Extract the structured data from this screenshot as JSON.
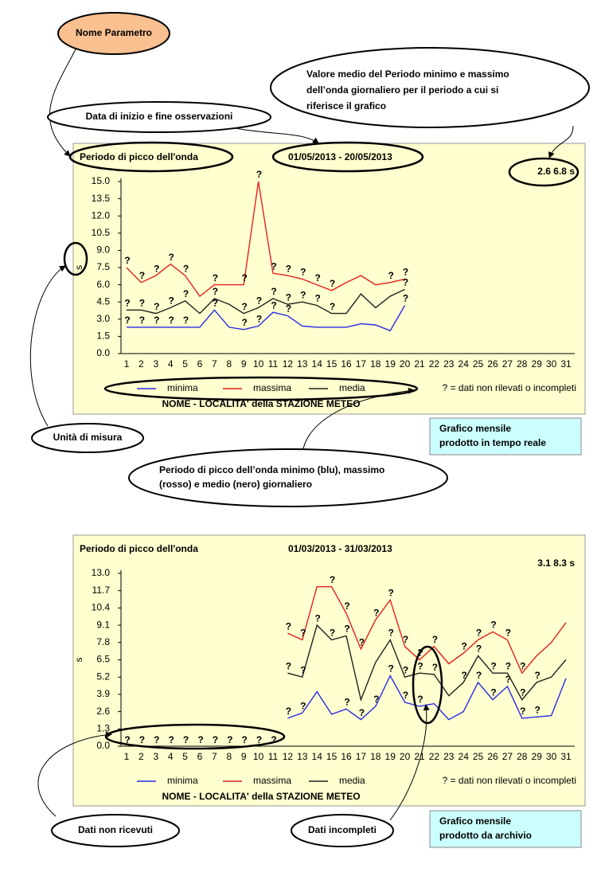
{
  "chart_data": [
    {
      "type": "line",
      "title": "Periodo di picco dell'onda",
      "period": "01/05/2013 - 20/05/2013",
      "stats": "2.6  6.8 s",
      "y_label": "s",
      "note": "? = dati non rilevati o incompleti",
      "station": "NOME - LOCALITA' della STAZIONE METEO",
      "flag_symbol": "?",
      "categories": [
        "1",
        "2",
        "3",
        "4",
        "5",
        "6",
        "7",
        "8",
        "9",
        "10",
        "11",
        "12",
        "13",
        "14",
        "15",
        "16",
        "17",
        "18",
        "19",
        "20",
        "21",
        "22",
        "23",
        "24",
        "25",
        "26",
        "27",
        "28",
        "29",
        "30",
        "31"
      ],
      "ylim": [
        0,
        15
      ],
      "yticks": [
        {
          "value": 0,
          "label": "0.0"
        },
        1.5,
        {
          "value": 3,
          "label": "3.0"
        },
        4.5,
        {
          "value": 6,
          "label": "6.0"
        },
        7.5,
        {
          "value": 9,
          "label": "9.0"
        },
        10.5,
        {
          "value": 12,
          "label": "12.0"
        },
        13.5,
        {
          "value": 15,
          "label": "15.0"
        }
      ],
      "series": [
        {
          "name": "minima",
          "color": "#2a2ae6",
          "values": [
            2.3,
            2.3,
            2.3,
            2.3,
            2.3,
            2.3,
            3.8,
            2.3,
            2.1,
            2.4,
            3.6,
            3.3,
            2.4,
            2.3,
            2.3,
            2.3,
            2.6,
            2.5,
            2.0,
            4.2,
            null,
            null,
            null,
            null,
            null,
            null,
            null,
            null,
            null,
            null,
            null
          ],
          "flags": [
            0,
            1,
            2,
            3,
            4,
            6,
            8,
            9,
            10,
            11,
            19
          ]
        },
        {
          "name": "massima",
          "color": "#e62020",
          "values": [
            7.5,
            6.2,
            6.8,
            7.8,
            6.8,
            5.0,
            6.0,
            6.0,
            6.0,
            15.0,
            7.0,
            6.8,
            6.5,
            6.0,
            5.5,
            6.2,
            6.8,
            6.0,
            6.2,
            6.5,
            null,
            null,
            null,
            null,
            null,
            null,
            null,
            null,
            null,
            null,
            null
          ],
          "flags": [
            0,
            1,
            2,
            3,
            4,
            6,
            8,
            9,
            10,
            11,
            12,
            13,
            14,
            18,
            19
          ]
        },
        {
          "name": "media",
          "color": "#202020",
          "values": [
            3.8,
            3.8,
            3.5,
            4.0,
            4.6,
            3.5,
            4.8,
            4.3,
            3.5,
            4.0,
            4.8,
            4.3,
            4.5,
            4.2,
            3.5,
            3.5,
            5.2,
            4.0,
            5.0,
            5.6,
            null,
            null,
            null,
            null,
            null,
            null,
            null,
            null,
            null,
            null,
            null
          ],
          "flags": [
            0,
            1,
            2,
            3,
            4,
            6,
            8,
            9,
            10,
            11,
            12,
            13,
            14,
            19
          ]
        }
      ]
    },
    {
      "type": "line",
      "title": "Periodo di picco dell'onda",
      "period": "01/03/2013 - 31/03/2013",
      "stats": "3.1  8.3 s",
      "y_label": "s",
      "note": "? = dati non rilevati o incompleti",
      "station": "NOME - LOCALITA' della STAZIONE METEO",
      "flag_symbol": "?",
      "categories": [
        "1",
        "2",
        "3",
        "4",
        "5",
        "6",
        "7",
        "8",
        "9",
        "10",
        "11",
        "12",
        "13",
        "14",
        "15",
        "16",
        "17",
        "18",
        "19",
        "20",
        "21",
        "22",
        "23",
        "24",
        "25",
        "26",
        "27",
        "28",
        "29",
        "30",
        "31"
      ],
      "ylim": [
        0,
        13
      ],
      "yticks": [
        {
          "value": 0,
          "label": "0.0"
        },
        1.3,
        2.6,
        3.9,
        5.2,
        6.5,
        7.8,
        9.1,
        10.4,
        11.7,
        {
          "value": 13,
          "label": "13.0"
        }
      ],
      "series": [
        {
          "name": "minima",
          "color": "#2a2ae6",
          "values": [
            null,
            null,
            null,
            null,
            null,
            null,
            null,
            null,
            null,
            null,
            null,
            2.1,
            2.5,
            4.1,
            2.4,
            2.8,
            2.0,
            3.0,
            5.3,
            3.3,
            3.0,
            3.2,
            2.0,
            2.6,
            4.8,
            3.5,
            4.5,
            2.1,
            2.2,
            2.3,
            5.1
          ],
          "flags": [
            11,
            12,
            15,
            16,
            17,
            18,
            19,
            20,
            24,
            25,
            26,
            27,
            28
          ]
        },
        {
          "name": "massima",
          "color": "#e62020",
          "values": [
            null,
            null,
            null,
            null,
            null,
            null,
            null,
            null,
            null,
            null,
            null,
            8.5,
            8.0,
            12.0,
            12.0,
            10.0,
            7.3,
            9.5,
            11.0,
            7.5,
            6.5,
            7.5,
            6.2,
            7.0,
            8.0,
            8.6,
            8.0,
            5.5,
            6.8,
            7.8,
            9.3
          ],
          "flags": [
            11,
            12,
            14,
            15,
            16,
            17,
            18,
            19,
            20,
            21,
            23,
            24,
            25,
            26,
            27
          ]
        },
        {
          "name": "media",
          "color": "#202020",
          "values": [
            null,
            null,
            null,
            null,
            null,
            null,
            null,
            null,
            null,
            null,
            null,
            5.5,
            5.2,
            9.1,
            8.0,
            8.3,
            3.5,
            6.3,
            8.0,
            5.2,
            5.5,
            5.4,
            3.8,
            4.8,
            6.8,
            5.5,
            5.5,
            3.5,
            4.8,
            5.2,
            6.5
          ],
          "flags": [
            0,
            1,
            2,
            3,
            4,
            5,
            6,
            7,
            8,
            9,
            10,
            11,
            12,
            13,
            14,
            15,
            18,
            19,
            20,
            21,
            23,
            24,
            25,
            26,
            27,
            28
          ]
        }
      ]
    }
  ],
  "annotations": {
    "nome_parametro": "Nome Parametro",
    "data_inizio": "Data di inizio e fine osservazioni",
    "valore_medio": [
      "Valore medio del Periodo minimo e massimo",
      "dell’onda giornaliero per il periodo a cui si",
      "riferisce il grafico"
    ],
    "unita": "Unità di misura",
    "grafico_tempo_reale": [
      "Grafico mensile",
      "prodotto in tempo reale"
    ],
    "periodo_descr": [
      "Periodo di picco dell’onda minimo (blu), massimo",
      "(rosso) e medio (nero) giornaliero"
    ],
    "non_ricevuti": "Dati non ricevuti",
    "incompleti": "Dati incompleti",
    "grafico_archivio": [
      "Grafico mensile",
      "prodotto da archivio"
    ]
  }
}
